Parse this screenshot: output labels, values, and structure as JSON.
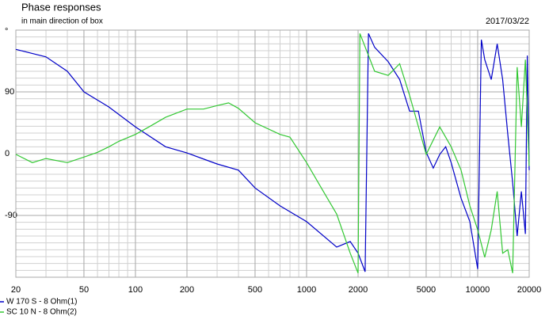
{
  "chart_data": {
    "type": "line",
    "title": "Phase responses",
    "subtitle": "in main direction of box",
    "date": "2017/03/22",
    "y_label": "°",
    "log_x": true,
    "grid": true,
    "xlim": [
      20,
      20000
    ],
    "xticks": [
      20,
      50,
      100,
      200,
      500,
      1000,
      2000,
      5000,
      10000,
      20000
    ],
    "ylim": [
      -180,
      180
    ],
    "yticks": [
      -90,
      0,
      90
    ],
    "series": [
      {
        "name": "W 170 S - 8 Ohm(1)",
        "color": "#0000c8",
        "x": [
          20,
          30,
          40,
          50,
          70,
          100,
          150,
          200,
          300,
          400,
          500,
          700,
          1000,
          1500,
          1800,
          2000,
          2200,
          2300,
          2500,
          3000,
          3500,
          4000,
          4500,
          5000,
          5500,
          6000,
          6500,
          7000,
          8000,
          9000,
          10000,
          10500,
          11000,
          12000,
          13000,
          14000,
          15000,
          16000,
          17000,
          18000,
          19000,
          19500,
          20000
        ],
        "values": [
          152,
          141,
          120,
          90,
          68,
          39,
          10,
          1,
          -15,
          -24,
          -50,
          -76,
          -99,
          -136,
          -128,
          -145,
          -172,
          175,
          155,
          134,
          108,
          62,
          62,
          2,
          -21,
          -1,
          10,
          -13,
          -65,
          -99,
          -168,
          166,
          137,
          108,
          160,
          108,
          28,
          -42,
          -120,
          -55,
          -117,
          143,
          -24
        ]
      },
      {
        "name": "SC 10 N - 8 Ohm(2)",
        "color": "#33c833",
        "x": [
          20,
          25,
          30,
          40,
          50,
          60,
          70,
          80,
          100,
          120,
          150,
          200,
          250,
          300,
          350,
          400,
          500,
          700,
          800,
          1000,
          1200,
          1500,
          1800,
          2000,
          2050,
          2500,
          3000,
          3500,
          4000,
          5000,
          6000,
          7000,
          8000,
          9000,
          10000,
          11000,
          12000,
          13000,
          14000,
          15000,
          16000,
          17000,
          18000,
          19000,
          20000
        ],
        "values": [
          -1,
          -13,
          -7,
          -13,
          -5,
          2,
          10,
          18,
          28,
          39,
          53,
          65,
          65,
          70,
          74,
          66,
          45,
          28,
          24,
          -13,
          -47,
          -88,
          -145,
          -174,
          175,
          120,
          114,
          131,
          85,
          -1,
          39,
          10,
          -24,
          -76,
          -111,
          -151,
          -111,
          -55,
          -145,
          -140,
          -174,
          126,
          39,
          137,
          -18
        ]
      }
    ]
  }
}
